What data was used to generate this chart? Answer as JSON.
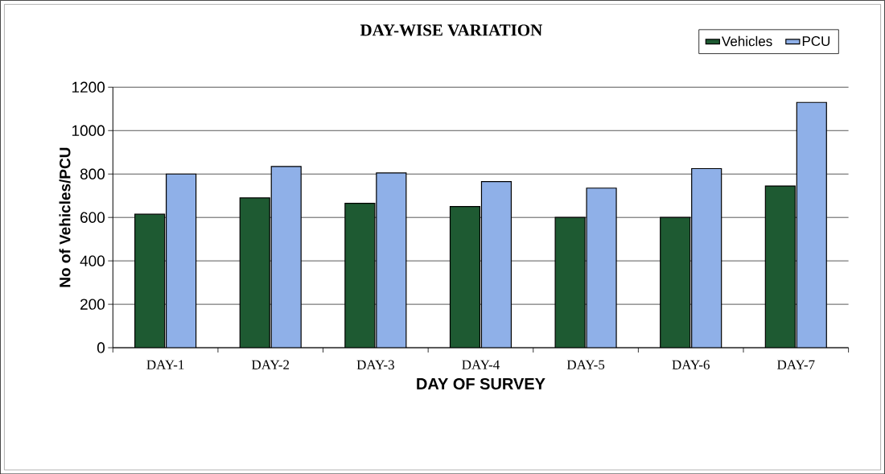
{
  "chart_data": {
    "type": "bar",
    "title": "DAY-WISE VARIATION",
    "xlabel": "DAY OF SURVEY",
    "ylabel": "No of Vehicles/PCU",
    "categories": [
      "DAY-1",
      "DAY-2",
      "DAY-3",
      "DAY-4",
      "DAY-5",
      "DAY-6",
      "DAY-7"
    ],
    "series": [
      {
        "name": "Vehicles",
        "color": "#1e5a32",
        "values": [
          615,
          690,
          665,
          650,
          600,
          600,
          745
        ]
      },
      {
        "name": "PCU",
        "color": "#8fb0e8",
        "values": [
          800,
          835,
          805,
          765,
          735,
          825,
          1130
        ]
      }
    ],
    "ylim": [
      0,
      1200
    ],
    "yticks": [
      0,
      200,
      400,
      600,
      800,
      1000,
      1200
    ],
    "grid": "y",
    "legend": "top right"
  }
}
